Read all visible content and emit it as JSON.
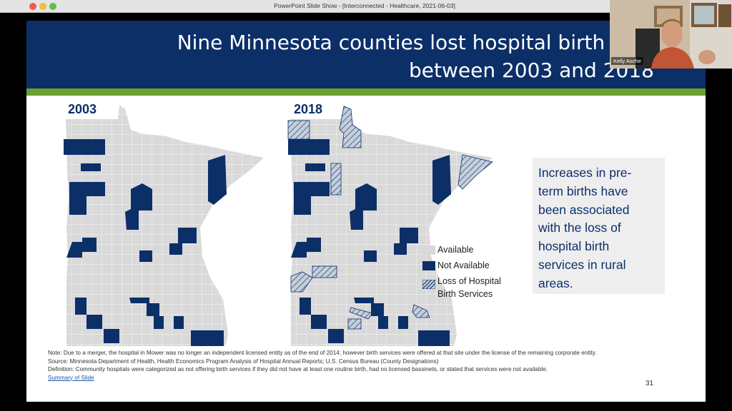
{
  "window": {
    "title": "PowerPoint Slide Show - [Interconnected - Healthcare, 2021-06-03]"
  },
  "slide": {
    "title_line1": "Nine Minnesota counties lost hospital birth serv",
    "title_line2": "between 2003 and 2018",
    "map_left_label": "2003",
    "map_right_label": "2018",
    "legend": [
      {
        "label": "Available",
        "color": "#d9d9d9"
      },
      {
        "label": "Not Available",
        "color": "#0c2f68"
      },
      {
        "label": "Loss of Hospital Birth Services",
        "line1": "Loss of Hospital",
        "line2": "Birth Services",
        "color": "#a3b1c4"
      }
    ],
    "callout": [
      "Increases in pre-",
      "term births have",
      "been associated",
      "with the loss of",
      "hospital birth",
      "services in rural",
      "areas."
    ],
    "note": "Note: Due to a merger, the hospital in Mower was no longer an independent licensed entity as of the end of 2014; however birth services were offered at that site under the license of the remaining corporate entity.",
    "source": "Source: Minnesota Department of Health, Health Economics Program Analysis of Hospital Annual Reports; U.S. Census Bureau (County Designations)",
    "definition": "Definition: Community hospitals were categorized as not offering birth services if they did not have at least one routine birth, had no licensed bassinets, or stated that services were not available.",
    "summary_link": "Summary of Slide",
    "slide_number": "31"
  },
  "video": {
    "participant_name": "Kelly Asche"
  },
  "colors": {
    "header": "#0c2f68",
    "accent_bar": "#6aa02f",
    "available": "#d9d9d9",
    "not_available": "#0c2f68"
  }
}
